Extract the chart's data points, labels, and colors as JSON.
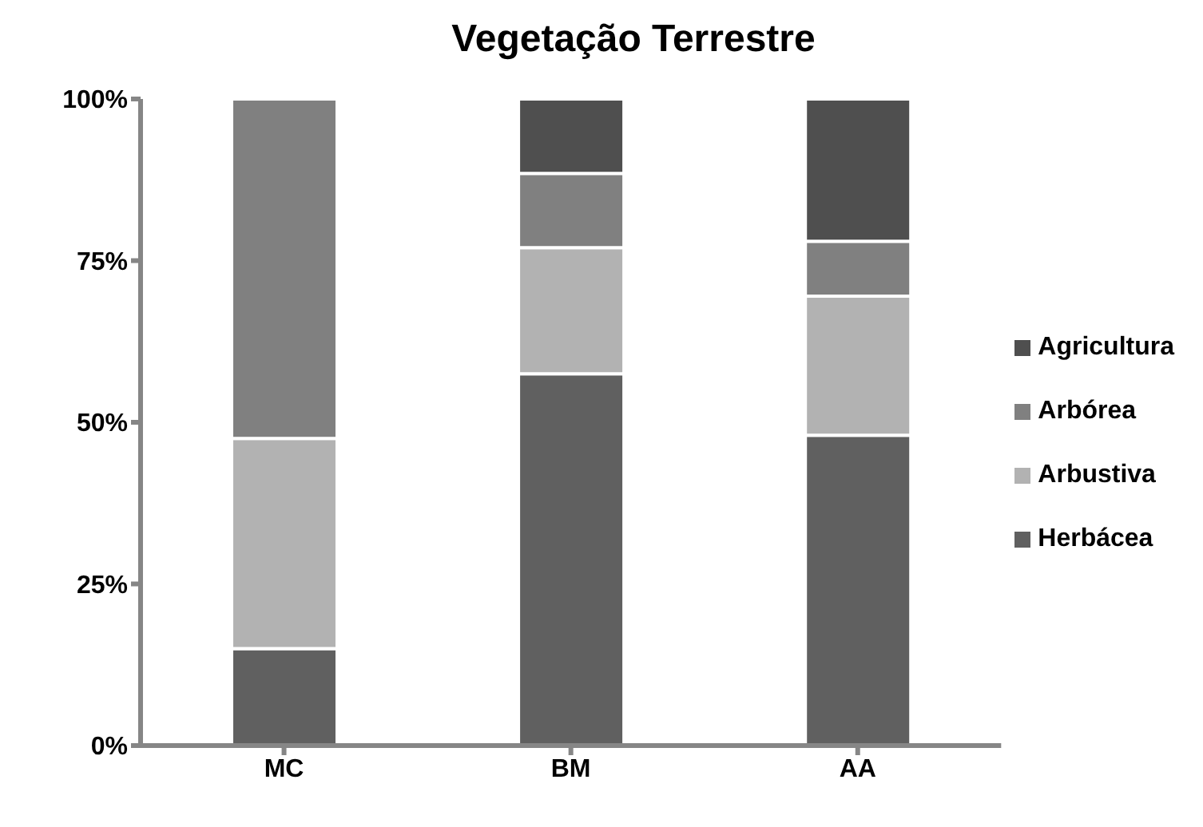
{
  "chart_data": {
    "type": "bar",
    "title": "Vegetação Terrestre",
    "categories": [
      "MC",
      "BM",
      "AA"
    ],
    "stacked": true,
    "series": [
      {
        "name": "Herbácea",
        "color": "#606060",
        "values": [
          15,
          57.5,
          48
        ]
      },
      {
        "name": "Arbustiva",
        "color": "#b2b2b2",
        "values": [
          32.5,
          19.5,
          21.5
        ]
      },
      {
        "name": "Arbórea",
        "color": "#808080",
        "values": [
          52.5,
          11.5,
          8.5
        ]
      },
      {
        "name": "Agricultura",
        "color": "#4f4f4f",
        "values": [
          0,
          11.5,
          22
        ]
      }
    ],
    "ylim": [
      0,
      100
    ],
    "yticks": [
      {
        "value": 0,
        "label": "0%"
      },
      {
        "value": 25,
        "label": "25%"
      },
      {
        "value": 50,
        "label": "50%"
      },
      {
        "value": 75,
        "label": "75%"
      },
      {
        "value": 100,
        "label": "100%"
      }
    ],
    "grid": false,
    "legend": "right"
  }
}
